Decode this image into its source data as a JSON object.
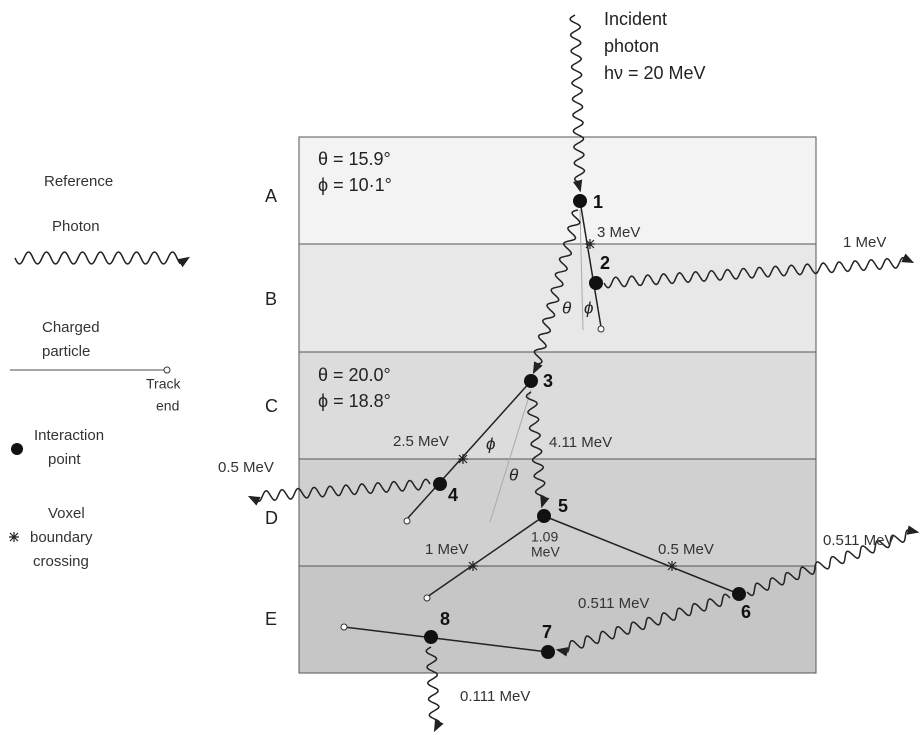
{
  "incident": [
    "Incident",
    "photon",
    "hν = 20 MeV"
  ],
  "legend": {
    "title": "Reference",
    "photon": "Photon",
    "charged": [
      "Charged",
      "particle"
    ],
    "track_end": [
      "Track",
      "end"
    ],
    "interaction": [
      "Interaction",
      "point"
    ],
    "voxel": [
      "Voxel",
      "boundary",
      "crossing"
    ]
  },
  "layers": [
    "A",
    "B",
    "C",
    "D",
    "E"
  ],
  "angles": [
    "θ = 15.9°",
    "ϕ = 10·1°",
    "θ = 20.0°",
    "ϕ = 18.8°"
  ],
  "angle_marks": [
    "θ",
    "ϕ",
    "ϕ",
    "θ"
  ],
  "points": [
    "1",
    "2",
    "3",
    "4",
    "5",
    "6",
    "7",
    "8"
  ],
  "energies": [
    "3 MeV",
    "1 MeV",
    "2.5 MeV",
    "4.11 MeV",
    "0.5 MeV",
    "1 MeV",
    "1.09",
    "MeV",
    "0.5 MeV",
    "0.511 MeV",
    "0.511 MeV",
    "0.111 MeV"
  ]
}
